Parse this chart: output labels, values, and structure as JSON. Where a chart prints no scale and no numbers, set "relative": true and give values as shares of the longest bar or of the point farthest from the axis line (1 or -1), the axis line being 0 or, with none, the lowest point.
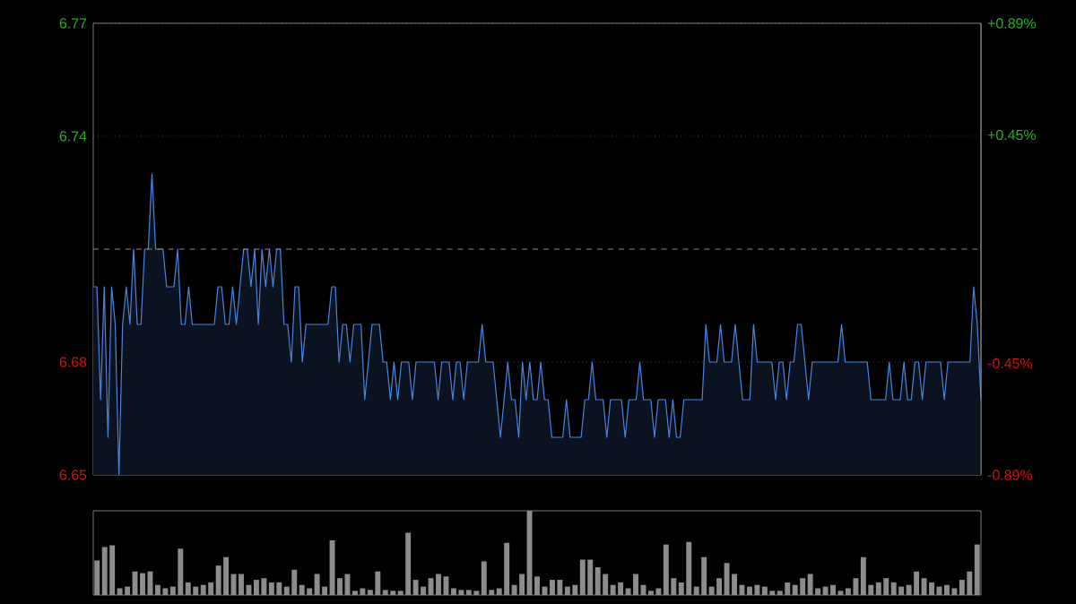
{
  "chart_data": [
    {
      "type": "area",
      "grid": "y",
      "categories": [
        null,
        null,
        null,
        null,
        null,
        null,
        null,
        null,
        null,
        null,
        null,
        null,
        null,
        null,
        null,
        null,
        null,
        null,
        null,
        null,
        null,
        null,
        null,
        null,
        null,
        null,
        null,
        null,
        null,
        null,
        null,
        null,
        null,
        null,
        null,
        null,
        null,
        null,
        null,
        null,
        null,
        null,
        null,
        null,
        null,
        null,
        null,
        null,
        null,
        null,
        null,
        null,
        null,
        null,
        null,
        null,
        null,
        null,
        null,
        null,
        null,
        null,
        null,
        null,
        null,
        null,
        null,
        null,
        null,
        null,
        null,
        null,
        null,
        null,
        null,
        null,
        null,
        null,
        null,
        null,
        null,
        null,
        null,
        null,
        null,
        null,
        null,
        null,
        null,
        null,
        null,
        null,
        null,
        null,
        null,
        null,
        null,
        null,
        null,
        null,
        null,
        null,
        null,
        null,
        null,
        null,
        null,
        null,
        null,
        null,
        null,
        null,
        null,
        null,
        null,
        null,
        null,
        null,
        null,
        null,
        null,
        null,
        null,
        null,
        null,
        null,
        null,
        null,
        null,
        null,
        null,
        null,
        null,
        null,
        null,
        null,
        null,
        null,
        null,
        null,
        null,
        null,
        null,
        null,
        null,
        null,
        null,
        null,
        null,
        null,
        null,
        null,
        null,
        null,
        null,
        null,
        null,
        null,
        null,
        null,
        null,
        null,
        null,
        null,
        null,
        null,
        null,
        null,
        null,
        null,
        null,
        null,
        null,
        null,
        null,
        null,
        null,
        null,
        null,
        null,
        null,
        null,
        null,
        null,
        null,
        null,
        null,
        null,
        null,
        null,
        null,
        null,
        null,
        null,
        null,
        null,
        null,
        null,
        null,
        null,
        null,
        null,
        null,
        null,
        null,
        null,
        null,
        null,
        null,
        null,
        null,
        null,
        null,
        null,
        null,
        null,
        null,
        null,
        null,
        null,
        null,
        null,
        null,
        null,
        null,
        null,
        null,
        null,
        null,
        null,
        null,
        null,
        null,
        null,
        null,
        null,
        null,
        null,
        null,
        null,
        null,
        null,
        null
      ],
      "series": [
        {
          "color": "#4a86e0",
          "values": [
            6.7,
            6.7,
            6.67,
            6.7,
            6.66,
            6.7,
            6.69,
            6.65,
            6.69,
            6.7,
            6.69,
            6.71,
            6.69,
            6.69,
            6.71,
            6.71,
            6.73,
            6.71,
            6.71,
            6.71,
            6.7,
            6.7,
            6.7,
            6.71,
            6.69,
            6.69,
            6.7,
            6.69,
            6.69,
            6.69,
            6.69,
            6.69,
            6.69,
            6.69,
            6.7,
            6.7,
            6.69,
            6.69,
            6.7,
            6.69,
            6.7,
            6.71,
            6.71,
            6.7,
            6.71,
            6.69,
            6.71,
            6.7,
            6.71,
            6.7,
            6.71,
            6.71,
            6.69,
            6.69,
            6.68,
            6.7,
            6.7,
            6.68,
            6.69,
            6.69,
            6.69,
            6.69,
            6.69,
            6.69,
            6.69,
            6.7,
            6.7,
            6.68,
            6.69,
            6.69,
            6.68,
            6.69,
            6.69,
            6.69,
            6.67,
            6.68,
            6.69,
            6.69,
            6.69,
            6.68,
            6.68,
            6.67,
            6.68,
            6.67,
            6.68,
            6.68,
            6.68,
            6.67,
            6.68,
            6.68,
            6.68,
            6.68,
            6.68,
            6.68,
            6.67,
            6.68,
            6.68,
            6.68,
            6.67,
            6.68,
            6.68,
            6.67,
            6.68,
            6.68,
            6.68,
            6.68,
            6.69,
            6.68,
            6.68,
            6.68,
            6.67,
            6.66,
            6.67,
            6.68,
            6.67,
            6.67,
            6.66,
            6.68,
            6.67,
            6.68,
            6.67,
            6.67,
            6.68,
            6.67,
            6.67,
            6.66,
            6.66,
            6.66,
            6.66,
            6.67,
            6.66,
            6.66,
            6.66,
            6.66,
            6.67,
            6.67,
            6.68,
            6.67,
            6.67,
            6.67,
            6.66,
            6.67,
            6.67,
            6.67,
            6.67,
            6.66,
            6.67,
            6.67,
            6.67,
            6.68,
            6.67,
            6.67,
            6.67,
            6.66,
            6.67,
            6.67,
            6.67,
            6.66,
            6.67,
            6.66,
            6.66,
            6.67,
            6.67,
            6.67,
            6.67,
            6.67,
            6.67,
            6.69,
            6.68,
            6.68,
            6.68,
            6.69,
            6.68,
            6.68,
            6.68,
            6.69,
            6.68,
            6.67,
            6.67,
            6.67,
            6.69,
            6.68,
            6.68,
            6.68,
            6.68,
            6.68,
            6.67,
            6.68,
            6.68,
            6.67,
            6.68,
            6.68,
            6.69,
            6.69,
            6.68,
            6.67,
            6.68,
            6.68,
            6.68,
            6.68,
            6.68,
            6.68,
            6.68,
            6.68,
            6.69,
            6.68,
            6.68,
            6.68,
            6.68,
            6.68,
            6.68,
            6.68,
            6.67,
            6.67,
            6.67,
            6.67,
            6.67,
            6.68,
            6.67,
            6.67,
            6.67,
            6.68,
            6.67,
            6.67,
            6.68,
            6.68,
            6.67,
            6.68,
            6.68,
            6.68,
            6.68,
            6.68,
            6.67,
            6.68,
            6.68,
            6.68,
            6.68,
            6.68,
            6.68,
            6.68,
            6.7,
            6.69,
            6.67
          ]
        }
      ],
      "ylim": [
        6.65,
        6.77
      ],
      "yticks": [
        6.65,
        6.68,
        6.74,
        6.77
      ],
      "y2lim": [
        -0.89,
        0.89
      ],
      "y2ticks": [
        {
          "value": -0.89,
          "label": "-0.89%"
        },
        {
          "value": -0.45,
          "label": "-0.45%"
        },
        {
          "value": 0.45,
          "label": "+0.45%"
        },
        {
          "value": 0.89,
          "label": "+0.89%"
        }
      ],
      "ref_lines": [
        {
          "axis": "y",
          "value": 6.71,
          "line_style": "dashed"
        }
      ]
    },
    {
      "type": "bar",
      "relative": true,
      "color": "#8c8c8c",
      "categories": [
        null,
        null,
        null,
        null,
        null,
        null,
        null,
        null,
        null,
        null,
        null,
        null,
        null,
        null,
        null,
        null,
        null,
        null,
        null,
        null,
        null,
        null,
        null,
        null,
        null,
        null,
        null,
        null,
        null,
        null,
        null,
        null,
        null,
        null,
        null,
        null,
        null,
        null,
        null,
        null,
        null,
        null,
        null,
        null,
        null,
        null,
        null,
        null,
        null,
        null,
        null,
        null,
        null,
        null,
        null,
        null,
        null,
        null,
        null,
        null,
        null,
        null,
        null,
        null,
        null,
        null,
        null,
        null,
        null,
        null,
        null,
        null,
        null,
        null,
        null,
        null,
        null,
        null,
        null,
        null,
        null,
        null,
        null,
        null,
        null,
        null,
        null,
        null,
        null,
        null,
        null,
        null,
        null,
        null,
        null,
        null,
        null,
        null,
        null,
        null,
        null,
        null,
        null,
        null,
        null,
        null,
        null,
        null,
        null,
        null,
        null,
        null,
        null,
        null,
        null,
        null,
        null
      ],
      "values": [
        0.41,
        0.57,
        0.59,
        0.08,
        0.1,
        0.28,
        0.26,
        0.28,
        0.12,
        0.08,
        0.1,
        0.55,
        0.15,
        0.1,
        0.12,
        0.15,
        0.35,
        0.45,
        0.25,
        0.25,
        0.12,
        0.18,
        0.2,
        0.15,
        0.15,
        0.1,
        0.3,
        0.12,
        0.08,
        0.25,
        0.1,
        0.65,
        0.2,
        0.25,
        0.05,
        0.08,
        0.06,
        0.28,
        0.06,
        0.05,
        0.05,
        0.74,
        0.18,
        0.1,
        0.2,
        0.25,
        0.22,
        0.08,
        0.06,
        0.06,
        0.05,
        0.4,
        0.06,
        0.08,
        0.62,
        0.12,
        0.25,
        1.0,
        0.22,
        0.1,
        0.18,
        0.18,
        0.1,
        0.12,
        0.42,
        0.42,
        0.33,
        0.25,
        0.12,
        0.15,
        0.08,
        0.25,
        0.12,
        0.05,
        0.08,
        0.6,
        0.2,
        0.15,
        0.63,
        0.1,
        0.45,
        0.1,
        0.2,
        0.38,
        0.25,
        0.12,
        0.1,
        0.12,
        0.1,
        0.05,
        0.05,
        0.15,
        0.12,
        0.2,
        0.25,
        0.08,
        0.1,
        0.12,
        0.05,
        0.08,
        0.2,
        0.45,
        0.12,
        0.15,
        0.2,
        0.15,
        0.1,
        0.12,
        0.28,
        0.2,
        0.15,
        0.1,
        0.12,
        0.08,
        0.18,
        0.28,
        0.6
      ]
    }
  ]
}
